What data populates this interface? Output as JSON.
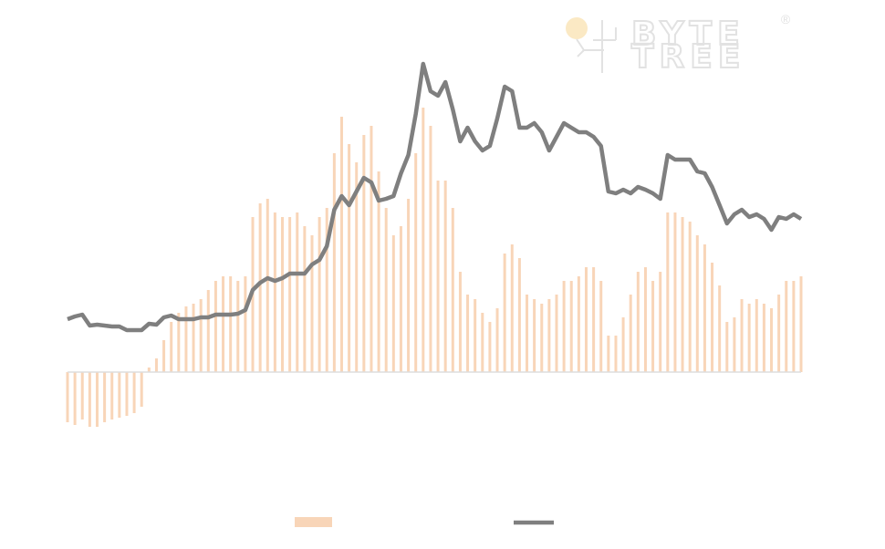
{
  "logo": {
    "lines": [
      "BYTE",
      "TREE"
    ],
    "mark": "®"
  },
  "chart_data": {
    "type": "bar-line",
    "categories": [
      null,
      null,
      null,
      null,
      null,
      null,
      null,
      null,
      null,
      null,
      null,
      null,
      null,
      null,
      null,
      null,
      null,
      null,
      null,
      null,
      null,
      null,
      null,
      null,
      null,
      null,
      null,
      null,
      null,
      null,
      null,
      null,
      null,
      null,
      null,
      null,
      null,
      null,
      null,
      null,
      null,
      null,
      null,
      null,
      null,
      null,
      null,
      null,
      null,
      null,
      null,
      null,
      null,
      null,
      null,
      null,
      null,
      null,
      null,
      null,
      null,
      null,
      null,
      null,
      null,
      null,
      null,
      null,
      null,
      null,
      null,
      null,
      null,
      null,
      null,
      null,
      null,
      null,
      null,
      null,
      null,
      null,
      null,
      null,
      null,
      null,
      null,
      null,
      null,
      null,
      null,
      null,
      null,
      null,
      null,
      null,
      null,
      null,
      null,
      null
    ],
    "ylim": [
      -132,
      368
    ],
    "y2lim": [
      -132,
      368
    ],
    "series": [
      {
        "type": "bar",
        "color": "#f8d5b8",
        "values": [
          -55,
          -58,
          -52,
          -60,
          -60,
          -55,
          -52,
          -50,
          -48,
          -45,
          -38,
          5,
          15,
          35,
          55,
          65,
          72,
          75,
          80,
          90,
          100,
          105,
          105,
          100,
          105,
          170,
          185,
          190,
          175,
          170,
          170,
          175,
          160,
          150,
          170,
          180,
          240,
          280,
          250,
          230,
          260,
          270,
          220,
          180,
          150,
          160,
          190,
          240,
          290,
          270,
          210,
          210,
          180,
          110,
          85,
          80,
          65,
          55,
          70,
          130,
          140,
          125,
          85,
          80,
          75,
          80,
          85,
          100,
          100,
          105,
          115,
          115,
          100,
          40,
          40,
          60,
          85,
          110,
          115,
          100,
          110,
          175,
          175,
          170,
          165,
          150,
          140,
          120,
          95,
          55,
          60,
          80,
          75,
          80,
          75,
          70,
          85,
          100,
          100,
          105
        ]
      },
      {
        "type": "line",
        "axis": "y2",
        "color": "#7f7f7f",
        "values": [
          58,
          61,
          63,
          51,
          52,
          51,
          50,
          50,
          46,
          46,
          46,
          53,
          52,
          60,
          62,
          58,
          58,
          58,
          60,
          60,
          63,
          63,
          63,
          64,
          68,
          90,
          98,
          103,
          100,
          103,
          108,
          108,
          108,
          118,
          123,
          138,
          178,
          193,
          183,
          198,
          213,
          208,
          188,
          190,
          193,
          218,
          238,
          283,
          338,
          308,
          303,
          318,
          288,
          253,
          268,
          253,
          243,
          248,
          278,
          313,
          308,
          268,
          268,
          273,
          263,
          243,
          258,
          273,
          268,
          263,
          263,
          258,
          248,
          198,
          196,
          200,
          196,
          203,
          200,
          196,
          190,
          238,
          233,
          233,
          233,
          220,
          218,
          203,
          183,
          163,
          173,
          178,
          170,
          173,
          168,
          156,
          170,
          168,
          173,
          168
        ]
      }
    ]
  }
}
